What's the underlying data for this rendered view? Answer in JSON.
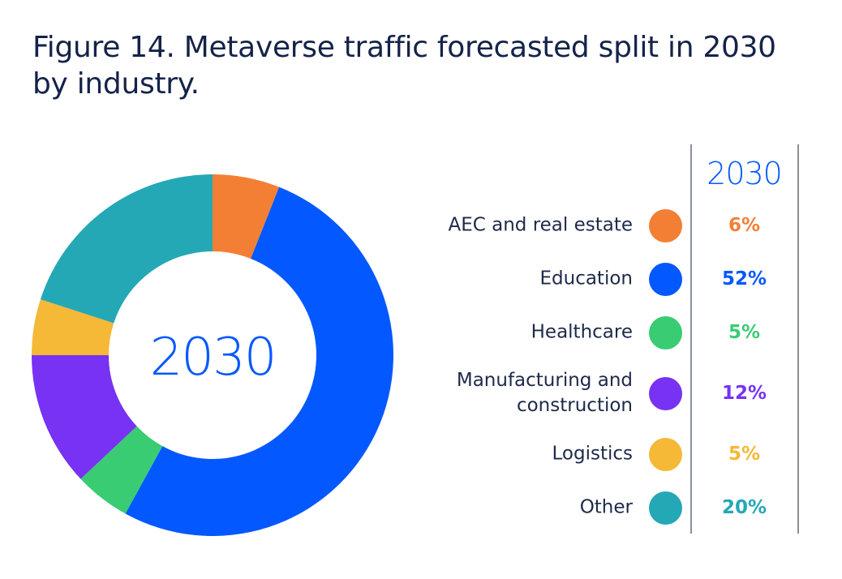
{
  "title": "Figure 14. Metaverse traffic forecasted split in 2030 by industry.",
  "chart_data": {
    "type": "pie",
    "variant": "donut",
    "center_label": "2030",
    "column_header": "2030",
    "slices": [
      {
        "label": "AEC and real estate",
        "value": 6,
        "display": "6%",
        "color": "#f37f35"
      },
      {
        "label": "Education",
        "value": 52,
        "display": "52%",
        "color": "#0458ff"
      },
      {
        "label": "Healthcare",
        "value": 5,
        "display": "5%",
        "color": "#39cc73"
      },
      {
        "label": "Manufacturing and construction",
        "value": 12,
        "display": "12%",
        "color": "#7732f3"
      },
      {
        "label": "Logistics",
        "value": 5,
        "display": "5%",
        "color": "#f5b837"
      },
      {
        "label": "Other",
        "value": 20,
        "display": "20%",
        "color": "#25a8b6"
      }
    ],
    "legend_placement": "right",
    "accent_color": "#0458ff"
  }
}
